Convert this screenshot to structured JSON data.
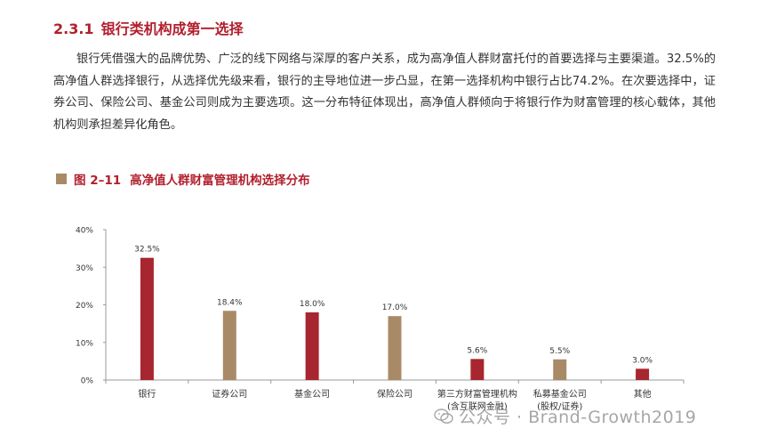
{
  "section": {
    "number": "2.3.1",
    "title": "银行类机构成第一选择"
  },
  "paragraph": "银行凭借强大的品牌优势、广泛的线下网络与深厚的客户关系，成为高净值人群财富托付的首要选择与主要渠道。32.5%的高净值人群选择银行，从选择优先级来看，银行的主导地位进一步凸显，在第一选择机构中银行占比74.2%。在次要选择中，证券公司、保险公司、基金公司则成为主要选项。这一分布特征体现出，高净值人群倾向于将银行作为财富管理的核心载体，其他机构则承担差异化角色。",
  "figure": {
    "number": "图 2–11",
    "title": "高净值人群财富管理机构选择分布"
  },
  "chart_data": {
    "type": "bar",
    "categories": [
      [
        "银行"
      ],
      [
        "证券公司"
      ],
      [
        "基金公司"
      ],
      [
        "保险公司"
      ],
      [
        "第三方财富管理机构",
        "(含互联网金融)"
      ],
      [
        "私募基金公司",
        "(股权/证券)"
      ],
      [
        "其他"
      ]
    ],
    "values": [
      32.5,
      18.4,
      18.0,
      17.0,
      5.6,
      5.5,
      3.0
    ],
    "value_labels": [
      "32.5%",
      "18.4%",
      "18.0%",
      "17.0%",
      "5.6%",
      "5.5%",
      "3.0%"
    ],
    "bar_colors": [
      "#a8262f",
      "#a98a67",
      "#a8262f",
      "#a98a67",
      "#a8262f",
      "#a98a67",
      "#a8262f"
    ],
    "yticks": [
      "0%",
      "10%",
      "20%",
      "30%",
      "40%"
    ],
    "ylim": [
      0,
      40
    ],
    "grid": false,
    "title": "",
    "xlabel": "",
    "ylabel": ""
  },
  "watermark": {
    "text": "公众号 · Brand-Growth2019",
    "icon": "wechat-icon"
  },
  "colors": {
    "accent_red": "#b11f2c",
    "bar_red": "#a8262f",
    "bar_tan": "#a98a67",
    "text": "#333333"
  }
}
